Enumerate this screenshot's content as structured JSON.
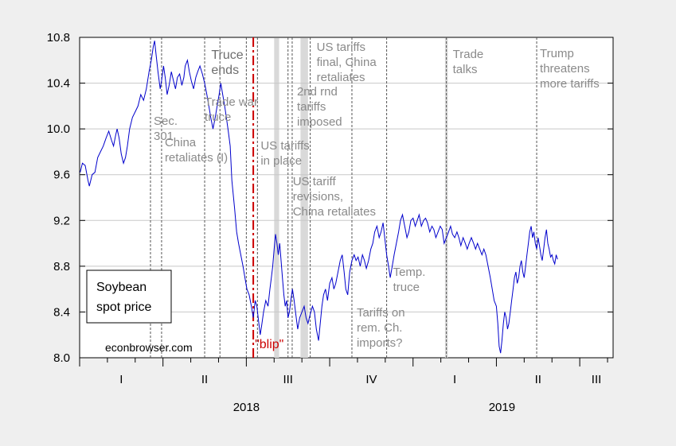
{
  "chart_data": {
    "type": "line",
    "title": "",
    "legend_label": [
      "Soybean",
      "spot price"
    ],
    "credit": "econbrowser.com",
    "ylim": [
      8.0,
      10.8
    ],
    "y_ticks": [
      "8.0",
      "8.4",
      "8.8",
      "9.2",
      "9.6",
      "10.0",
      "10.4",
      "10.8"
    ],
    "y_tick_values": [
      8.0,
      8.4,
      8.8,
      9.2,
      9.6,
      10.0,
      10.4,
      10.8
    ],
    "quarter_labels": [
      {
        "label": "I",
        "month": 1.5
      },
      {
        "label": "II",
        "month": 4.5
      },
      {
        "label": "III",
        "month": 7.5
      },
      {
        "label": "IV",
        "month": 10.5
      },
      {
        "label": "I",
        "month": 13.5
      },
      {
        "label": "II",
        "month": 16.5
      },
      {
        "label": "III",
        "month": 18.6
      }
    ],
    "year_labels": [
      {
        "label": "2018",
        "month": 6.0
      },
      {
        "label": "2019",
        "month": 15.2
      }
    ],
    "x_range_months": [
      0,
      19.2
    ],
    "grid": "horizontal",
    "series": [
      {
        "values": [
          [
            0.02,
            9.62
          ],
          [
            0.1,
            9.7
          ],
          [
            0.2,
            9.68
          ],
          [
            0.3,
            9.55
          ],
          [
            0.35,
            9.5
          ],
          [
            0.45,
            9.6
          ],
          [
            0.55,
            9.62
          ],
          [
            0.65,
            9.75
          ],
          [
            0.75,
            9.8
          ],
          [
            0.85,
            9.85
          ],
          [
            0.95,
            9.92
          ],
          [
            1.05,
            9.98
          ],
          [
            1.15,
            9.9
          ],
          [
            1.22,
            9.85
          ],
          [
            1.3,
            9.95
          ],
          [
            1.35,
            10.0
          ],
          [
            1.42,
            9.92
          ],
          [
            1.5,
            9.78
          ],
          [
            1.58,
            9.7
          ],
          [
            1.65,
            9.75
          ],
          [
            1.72,
            9.85
          ],
          [
            1.8,
            10.0
          ],
          [
            1.9,
            10.1
          ],
          [
            2.0,
            10.15
          ],
          [
            2.1,
            10.2
          ],
          [
            2.2,
            10.3
          ],
          [
            2.3,
            10.25
          ],
          [
            2.4,
            10.35
          ],
          [
            2.5,
            10.5
          ],
          [
            2.58,
            10.6
          ],
          [
            2.65,
            10.72
          ],
          [
            2.7,
            10.77
          ],
          [
            2.75,
            10.65
          ],
          [
            2.82,
            10.5
          ],
          [
            2.9,
            10.35
          ],
          [
            2.95,
            10.42
          ],
          [
            3.02,
            10.55
          ],
          [
            3.08,
            10.45
          ],
          [
            3.15,
            10.3
          ],
          [
            3.22,
            10.38
          ],
          [
            3.3,
            10.5
          ],
          [
            3.38,
            10.42
          ],
          [
            3.45,
            10.35
          ],
          [
            3.52,
            10.45
          ],
          [
            3.6,
            10.48
          ],
          [
            3.68,
            10.38
          ],
          [
            3.75,
            10.45
          ],
          [
            3.8,
            10.55
          ],
          [
            3.88,
            10.6
          ],
          [
            3.95,
            10.5
          ],
          [
            4.02,
            10.42
          ],
          [
            4.1,
            10.35
          ],
          [
            4.18,
            10.45
          ],
          [
            4.25,
            10.5
          ],
          [
            4.33,
            10.55
          ],
          [
            4.42,
            10.48
          ],
          [
            4.5,
            10.4
          ],
          [
            4.58,
            10.3
          ],
          [
            4.65,
            10.2
          ],
          [
            4.72,
            10.1
          ],
          [
            4.8,
            10.0
          ],
          [
            4.88,
            10.1
          ],
          [
            4.95,
            10.2
          ],
          [
            5.02,
            10.3
          ],
          [
            5.08,
            10.4
          ],
          [
            5.15,
            10.3
          ],
          [
            5.22,
            10.2
          ],
          [
            5.28,
            10.1
          ],
          [
            5.35,
            9.98
          ],
          [
            5.42,
            9.85
          ],
          [
            5.48,
            9.55
          ],
          [
            5.52,
            9.45
          ],
          [
            5.58,
            9.3
          ],
          [
            5.65,
            9.1
          ],
          [
            5.72,
            9.0
          ],
          [
            5.8,
            8.9
          ],
          [
            5.88,
            8.8
          ],
          [
            5.95,
            8.7
          ],
          [
            6.02,
            8.6
          ],
          [
            6.1,
            8.55
          ],
          [
            6.18,
            8.45
          ],
          [
            6.25,
            8.35
          ],
          [
            6.32,
            8.5
          ],
          [
            6.38,
            8.45
          ],
          [
            6.45,
            8.3
          ],
          [
            6.5,
            8.2
          ],
          [
            6.55,
            8.28
          ],
          [
            6.62,
            8.4
          ],
          [
            6.7,
            8.5
          ],
          [
            6.78,
            8.45
          ],
          [
            6.85,
            8.6
          ],
          [
            6.9,
            8.7
          ],
          [
            6.95,
            8.8
          ],
          [
            7.0,
            8.95
          ],
          [
            7.05,
            9.08
          ],
          [
            7.1,
            9.0
          ],
          [
            7.15,
            8.9
          ],
          [
            7.2,
            9.0
          ],
          [
            7.25,
            8.85
          ],
          [
            7.3,
            8.7
          ],
          [
            7.35,
            8.55
          ],
          [
            7.4,
            8.45
          ],
          [
            7.45,
            8.5
          ],
          [
            7.5,
            8.35
          ],
          [
            7.55,
            8.4
          ],
          [
            7.6,
            8.5
          ],
          [
            7.66,
            8.6
          ],
          [
            7.72,
            8.5
          ],
          [
            7.78,
            8.38
          ],
          [
            7.85,
            8.25
          ],
          [
            7.92,
            8.35
          ],
          [
            8.0,
            8.4
          ],
          [
            8.08,
            8.45
          ],
          [
            8.15,
            8.35
          ],
          [
            8.22,
            8.3
          ],
          [
            8.3,
            8.38
          ],
          [
            8.38,
            8.45
          ],
          [
            8.45,
            8.4
          ],
          [
            8.52,
            8.25
          ],
          [
            8.6,
            8.15
          ],
          [
            8.66,
            8.3
          ],
          [
            8.72,
            8.45
          ],
          [
            8.78,
            8.55
          ],
          [
            8.85,
            8.6
          ],
          [
            8.92,
            8.5
          ],
          [
            9.0,
            8.65
          ],
          [
            9.08,
            8.7
          ],
          [
            9.15,
            8.6
          ],
          [
            9.22,
            8.65
          ],
          [
            9.3,
            8.75
          ],
          [
            9.38,
            8.85
          ],
          [
            9.45,
            8.9
          ],
          [
            9.52,
            8.75
          ],
          [
            9.58,
            8.6
          ],
          [
            9.65,
            8.55
          ],
          [
            9.72,
            8.75
          ],
          [
            9.8,
            8.85
          ],
          [
            9.88,
            8.9
          ],
          [
            9.95,
            8.85
          ],
          [
            10.02,
            8.88
          ],
          [
            10.1,
            8.8
          ],
          [
            10.18,
            8.9
          ],
          [
            10.25,
            8.85
          ],
          [
            10.32,
            8.78
          ],
          [
            10.4,
            8.85
          ],
          [
            10.48,
            8.95
          ],
          [
            10.55,
            9.0
          ],
          [
            10.62,
            9.1
          ],
          [
            10.7,
            9.15
          ],
          [
            10.78,
            9.05
          ],
          [
            10.85,
            9.1
          ],
          [
            10.92,
            9.18
          ],
          [
            10.98,
            9.05
          ],
          [
            11.05,
            8.9
          ],
          [
            11.12,
            8.8
          ],
          [
            11.18,
            8.7
          ],
          [
            11.25,
            8.8
          ],
          [
            11.32,
            8.9
          ],
          [
            11.4,
            9.0
          ],
          [
            11.48,
            9.1
          ],
          [
            11.55,
            9.2
          ],
          [
            11.62,
            9.25
          ],
          [
            11.7,
            9.15
          ],
          [
            11.78,
            9.05
          ],
          [
            11.85,
            9.1
          ],
          [
            11.92,
            9.2
          ],
          [
            12.0,
            9.22
          ],
          [
            12.08,
            9.15
          ],
          [
            12.15,
            9.2
          ],
          [
            12.22,
            9.25
          ],
          [
            12.3,
            9.15
          ],
          [
            12.38,
            9.2
          ],
          [
            12.45,
            9.22
          ],
          [
            12.52,
            9.18
          ],
          [
            12.6,
            9.1
          ],
          [
            12.68,
            9.15
          ],
          [
            12.75,
            9.12
          ],
          [
            12.82,
            9.05
          ],
          [
            12.9,
            9.1
          ],
          [
            12.98,
            9.15
          ],
          [
            13.05,
            9.12
          ],
          [
            13.12,
            9.0
          ],
          [
            13.2,
            9.05
          ],
          [
            13.28,
            9.1
          ],
          [
            13.35,
            9.15
          ],
          [
            13.42,
            9.08
          ],
          [
            13.5,
            9.05
          ],
          [
            13.58,
            9.1
          ],
          [
            13.65,
            9.05
          ],
          [
            13.72,
            8.98
          ],
          [
            13.8,
            9.05
          ],
          [
            13.88,
            9.0
          ],
          [
            13.95,
            8.95
          ],
          [
            14.02,
            9.0
          ],
          [
            14.1,
            9.05
          ],
          [
            14.18,
            9.0
          ],
          [
            14.25,
            8.95
          ],
          [
            14.32,
            9.0
          ],
          [
            14.4,
            8.95
          ],
          [
            14.48,
            8.9
          ],
          [
            14.55,
            8.95
          ],
          [
            14.62,
            8.9
          ],
          [
            14.7,
            8.8
          ],
          [
            14.78,
            8.7
          ],
          [
            14.85,
            8.6
          ],
          [
            14.92,
            8.5
          ],
          [
            15.0,
            8.45
          ],
          [
            15.05,
            8.3
          ],
          [
            15.1,
            8.1
          ],
          [
            15.15,
            8.04
          ],
          [
            15.2,
            8.15
          ],
          [
            15.25,
            8.3
          ],
          [
            15.3,
            8.4
          ],
          [
            15.35,
            8.35
          ],
          [
            15.4,
            8.25
          ],
          [
            15.45,
            8.3
          ],
          [
            15.5,
            8.4
          ],
          [
            15.55,
            8.5
          ],
          [
            15.6,
            8.6
          ],
          [
            15.65,
            8.7
          ],
          [
            15.7,
            8.75
          ],
          [
            15.75,
            8.65
          ],
          [
            15.8,
            8.7
          ],
          [
            15.85,
            8.8
          ],
          [
            15.9,
            8.85
          ],
          [
            15.95,
            8.75
          ],
          [
            16.0,
            8.7
          ],
          [
            16.05,
            8.8
          ],
          [
            16.1,
            8.9
          ],
          [
            16.15,
            9.0
          ],
          [
            16.2,
            9.1
          ],
          [
            16.25,
            9.15
          ],
          [
            16.3,
            9.05
          ],
          [
            16.35,
            9.1
          ],
          [
            16.4,
            9.0
          ],
          [
            16.45,
            8.95
          ],
          [
            16.5,
            9.05
          ],
          [
            16.55,
            8.98
          ],
          [
            16.6,
            8.9
          ],
          [
            16.65,
            8.85
          ],
          [
            16.7,
            8.95
          ],
          [
            16.75,
            9.05
          ],
          [
            16.8,
            9.12
          ],
          [
            16.85,
            9.0
          ],
          [
            16.9,
            8.95
          ],
          [
            16.95,
            8.88
          ],
          [
            17.0,
            8.9
          ],
          [
            17.05,
            8.85
          ],
          [
            17.1,
            8.82
          ],
          [
            17.15,
            8.9
          ],
          [
            17.2,
            8.86
          ]
        ]
      }
    ],
    "shaded_bands": [
      {
        "start": 7.0,
        "end": 7.18
      },
      {
        "start": 7.95,
        "end": 8.22
      },
      {
        "start": 13.15,
        "end": 13.25
      }
    ],
    "event_lines": [
      {
        "month": 2.55,
        "labels": [
          "Sec.",
          "301"
        ]
      },
      {
        "month": 2.95,
        "labels": [
          "China",
          "retaliates (I)"
        ]
      },
      {
        "month": 4.5,
        "labels": [
          "Trade war",
          "truce"
        ]
      },
      {
        "month": 5.05,
        "labels": []
      },
      {
        "month": 6.0,
        "labels": [
          "Truce",
          "ends"
        ],
        "emphasis": true
      },
      {
        "month": 6.4,
        "labels": [
          "US tariffs",
          "in place"
        ]
      },
      {
        "month": 7.5,
        "labels": [
          "US tariff",
          "revisions,",
          "China retaliates"
        ]
      },
      {
        "month": 7.65,
        "labels": [
          "2nd rnd",
          "tariffs",
          "imposed"
        ]
      },
      {
        "month": 8.3,
        "labels": [
          "US tariffs",
          "final, China",
          "retaliates"
        ]
      },
      {
        "month": 9.8,
        "labels": [
          "Tariffs on",
          "rem. Ch.",
          "imports?"
        ]
      },
      {
        "month": 11.05,
        "labels": [
          "Temp.",
          "truce"
        ]
      },
      {
        "month": 13.2,
        "labels": [
          "Trade",
          "talks"
        ]
      },
      {
        "month": 16.45,
        "labels": [
          "Trump",
          "threatens",
          "more tariffs"
        ]
      }
    ],
    "red_line": {
      "month": 6.25,
      "label": "\"blip\""
    }
  }
}
